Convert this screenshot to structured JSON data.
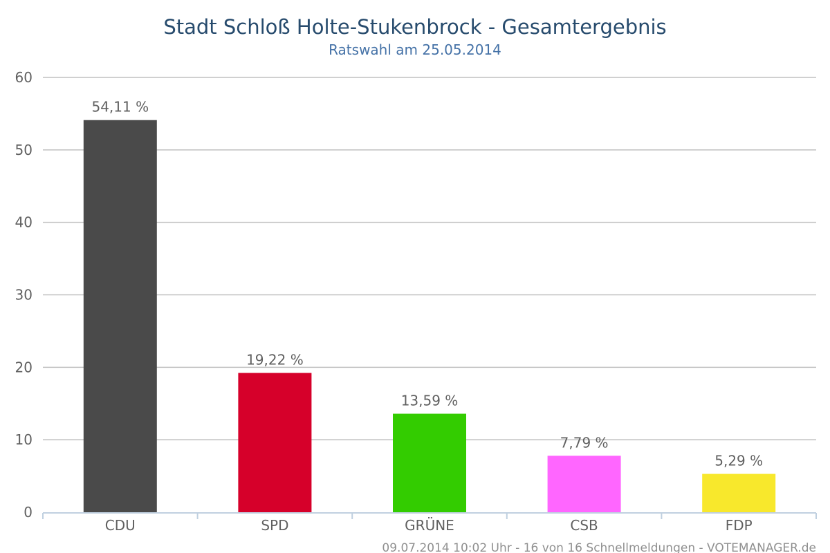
{
  "chart_data": {
    "type": "bar",
    "title": "Stadt Schloß Holte-Stukenbrock - Gesamtergebnis",
    "subtitle": "Ratswahl am 25.05.2014",
    "categories": [
      "CDU",
      "SPD",
      "GRÜNE",
      "CSB",
      "FDP"
    ],
    "values": [
      54.11,
      19.22,
      13.59,
      7.79,
      5.29
    ],
    "data_labels": [
      "54,11 %",
      "19,22 %",
      "13,59 %",
      "7,79 %",
      "5,29 %"
    ],
    "colors": [
      "#4a4a4a",
      "#d6002a",
      "#33cc00",
      "#ff66ff",
      "#f8e82c"
    ],
    "ylim": [
      0,
      60
    ],
    "yticks": [
      0,
      10,
      20,
      30,
      40,
      50,
      60
    ],
    "grid": true,
    "legend": "none",
    "xlabel": "",
    "ylabel": ""
  },
  "credits": "09.07.2014 10:02 Uhr - 16 von 16 Schnellmeldungen - VOTEMANAGER.de"
}
